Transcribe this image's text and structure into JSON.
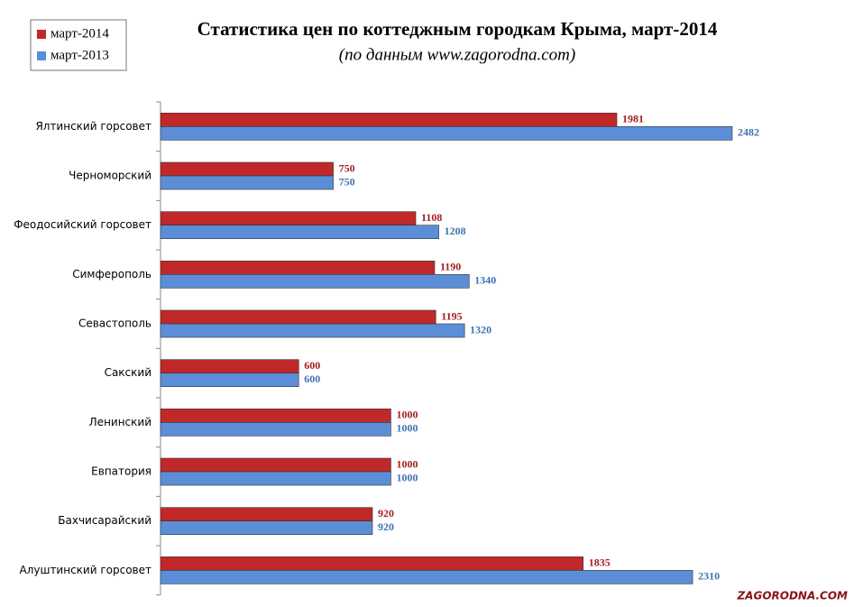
{
  "chart_data": {
    "type": "bar",
    "orientation": "horizontal",
    "title": "Статистика  цен по коттеджным городкам Крыма, март-2014",
    "subtitle": "(по данным www.zagorodna.com)",
    "categories": [
      "Ялтинский горсовет",
      "Черноморский",
      "Феодосийский горсовет",
      "Симферополь",
      "Севастополь",
      "Сакский",
      "Ленинский",
      "Евпатория",
      "Бахчисарайский",
      "Алуштинский  горсовет"
    ],
    "series": [
      {
        "name": "март-2014",
        "color": "#c0282a",
        "label_color": "#a01e20",
        "values": [
          1981,
          750,
          1108,
          1190,
          1195,
          600,
          1000,
          1000,
          920,
          1835
        ]
      },
      {
        "name": "март-2013",
        "color": "#5b8ed6",
        "label_color": "#3f72b0",
        "values": [
          2482,
          750,
          1208,
          1340,
          1320,
          600,
          1000,
          1000,
          920,
          2310
        ]
      }
    ],
    "legend": "top-left",
    "watermark": "ZAGORODNA.COM"
  }
}
